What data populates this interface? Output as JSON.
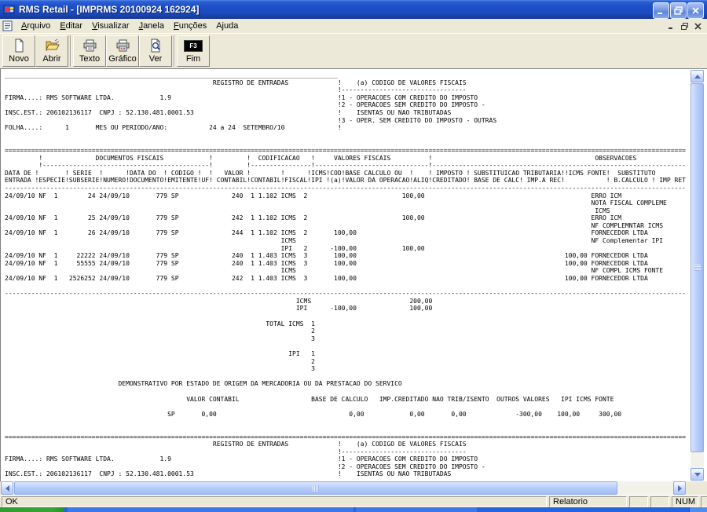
{
  "window": {
    "title": "RMS Retail - [IMPRMS 20100924 162924]"
  },
  "menu": {
    "items": [
      {
        "label": "Arquivo",
        "accel": 0
      },
      {
        "label": "Editar",
        "accel": 0
      },
      {
        "label": "Visualizar",
        "accel": 0
      },
      {
        "label": "Janela",
        "accel": 0
      },
      {
        "label": "Funções",
        "accel": 0
      },
      {
        "label": "Ajuda",
        "accel": 1
      }
    ]
  },
  "toolbar": {
    "buttons": [
      {
        "label": "Novo"
      },
      {
        "label": "Abrir"
      },
      {
        "label": "Texto"
      },
      {
        "label": "Gráfico"
      },
      {
        "label": "Ver"
      },
      {
        "label": "Fim",
        "key": "F3"
      }
    ]
  },
  "statusbar": {
    "message": "OK",
    "mode": "Relatorio",
    "num": "NUM"
  },
  "colors": {
    "titlebar_blue": "#1E50C8",
    "chrome_tan": "#ECE9D8",
    "scrollbar_blue": "#B2C9F8",
    "taskbar_blue": "#2663E0",
    "taskbar_green": "#37A437"
  },
  "report": {
    "lines": [
      [
        [
          0,
          "________________________________________________________________________________________"
        ]
      ],
      [
        [
          55,
          "REGISTRO DE ENTRADAS"
        ],
        [
          88,
          "!"
        ],
        [
          93,
          "(a) CODIGO DE VALORES FISCAIS"
        ]
      ],
      [
        [
          88,
          "!---------------------------------"
        ]
      ],
      [
        [
          0,
          "FIRMA....: RMS SOFTWARE LTDA."
        ],
        [
          41,
          "1.9"
        ],
        [
          88,
          "!1 - OPERACOES COM CREDITO DO IMPOSTO"
        ]
      ],
      [
        [
          88,
          "!2 - OPERACOES SEM CREDITO DO IMPOSTO -"
        ]
      ],
      [
        [
          0,
          "INSC.EST.: 206102136117"
        ],
        [
          25,
          "CNPJ : 52.130.481.0001.53"
        ],
        [
          88,
          "!    ISENTAS OU NAO TRIBUTADAS"
        ]
      ],
      [
        [
          88,
          "!3 - OPER. SEM CREDITO DO IMPOSTO - OUTRAS"
        ]
      ],
      [
        [
          0,
          "FOLHA....:"
        ],
        [
          16,
          "1"
        ],
        [
          24,
          "MES OU PERIODO/ANO:"
        ],
        [
          54,
          "24 a 24  SETEMBRO/10"
        ],
        [
          88,
          "!"
        ]
      ],
      [],
      [],
      [
        [
          0,
          "===================================================================================================================================================================================="
        ]
      ],
      [
        [
          9,
          "!"
        ],
        [
          24,
          "DOCUMENTOS FISCAIS"
        ],
        [
          54,
          "!"
        ],
        [
          64,
          "!"
        ],
        [
          67,
          "CODIFICACAO"
        ],
        [
          81,
          "!"
        ],
        [
          87,
          "VALORES FISCAIS"
        ],
        [
          112,
          "!"
        ],
        [
          156,
          "OBSERVACOES"
        ]
      ],
      [
        [
          9,
          "!"
        ],
        [
          10,
          "--------------------"
        ],
        [
          30,
          "--------------------"
        ],
        [
          50,
          "----"
        ],
        [
          54,
          "!"
        ],
        [
          64,
          "!----------------"
        ],
        [
          81,
          "!"
        ],
        [
          82,
          "--------------------"
        ],
        [
          102,
          "----------"
        ],
        [
          112,
          "!"
        ],
        [
          113,
          "--------------------"
        ],
        [
          133,
          "--------------------"
        ],
        [
          153,
          "--------------------"
        ],
        [
          173,
          "-------"
        ]
      ],
      [
        [
          0,
          "DATA DE"
        ],
        [
          8,
          "!"
        ],
        [
          16,
          "!"
        ],
        [
          18,
          "SERIE"
        ],
        [
          25,
          "!"
        ],
        [
          32,
          "!DATA DO"
        ],
        [
          42,
          "!"
        ],
        [
          44,
          "CODIGO"
        ],
        [
          51,
          "!"
        ],
        [
          54,
          "!"
        ],
        [
          58,
          "VALOR"
        ],
        [
          64,
          "!"
        ],
        [
          73,
          "!"
        ],
        [
          80,
          "!ICMS!COD!BASE CALCULO OU"
        ],
        [
          107,
          "!"
        ],
        [
          112,
          "! IMPOSTO !"
        ],
        [
          124,
          "SUBSTITUICAO TRIBUTARIA!!ICMS FONTE!"
        ],
        [
          162,
          "SUBSTITUTO"
        ]
      ],
      [
        [
          0,
          "ENTRADA"
        ],
        [
          8,
          "!ESPECIE!SUBSERIE!NUMERO!DOCUMENTO!EMITENTE!UF!"
        ],
        [
          56,
          "CONTABIL"
        ],
        [
          64,
          "!CONTABIL!FISCAL!IPI !(a)!VALOR DA OPERACAO!ALIQ!CREDITADO! BASE DE CALC! IMP.A REC!"
        ],
        [
          159,
          "! B.CALCULO ! IMP RET"
        ]
      ],
      [
        [
          0,
          "------------------------------------------------------------------------------------------------------------------------------------------------------------------------------------"
        ]
      ],
      [
        [
          0,
          "24/09/10 NF"
        ],
        [
          13,
          "1"
        ],
        [
          22,
          "24 24/09/10"
        ],
        [
          40,
          "779 SP"
        ],
        [
          60,
          "240"
        ],
        [
          65,
          "1 1.102 ICMS"
        ],
        [
          79,
          "2"
        ],
        [
          105,
          "100,00"
        ],
        [
          155,
          "ERRO ICM"
        ]
      ],
      [
        [
          155,
          "NOTA FISCAL COMPLEME"
        ]
      ],
      [
        [
          156,
          "ICMS"
        ]
      ],
      [
        [
          0,
          "24/09/10 NF"
        ],
        [
          13,
          "1"
        ],
        [
          22,
          "25 24/09/10"
        ],
        [
          40,
          "779 SP"
        ],
        [
          60,
          "242"
        ],
        [
          65,
          "1 1.102 ICMS"
        ],
        [
          79,
          "2"
        ],
        [
          105,
          "100,00"
        ],
        [
          155,
          "ERRO ICM"
        ]
      ],
      [
        [
          155,
          "NF COMPLEMNTAR ICMS"
        ]
      ],
      [
        [
          0,
          "24/09/10 NF"
        ],
        [
          13,
          "1"
        ],
        [
          22,
          "26 24/09/10"
        ],
        [
          40,
          "779 SP"
        ],
        [
          60,
          "244"
        ],
        [
          65,
          "1 1.102 ICMS"
        ],
        [
          79,
          "2"
        ],
        [
          87,
          "100,00"
        ],
        [
          155,
          "FORNECEDOR LTDA"
        ]
      ],
      [
        [
          73,
          "ICMS"
        ],
        [
          155,
          "NF Complementar IPI"
        ]
      ],
      [
        [
          73,
          "IPI"
        ],
        [
          79,
          "2"
        ],
        [
          86,
          "-100,00"
        ],
        [
          105,
          "100,00"
        ]
      ],
      [
        [
          0,
          "24/09/10 NF"
        ],
        [
          13,
          "1"
        ],
        [
          19,
          "22222 24/09/10"
        ],
        [
          40,
          "779 SP"
        ],
        [
          60,
          "240"
        ],
        [
          65,
          "1 1.403 ICMS"
        ],
        [
          79,
          "3"
        ],
        [
          87,
          "100,00"
        ],
        [
          148,
          "100,00 FORNECEDOR LTDA"
        ]
      ],
      [
        [
          0,
          "24/09/10 NF"
        ],
        [
          13,
          "1"
        ],
        [
          19,
          "55555 24/09/10"
        ],
        [
          40,
          "779 SP"
        ],
        [
          60,
          "240"
        ],
        [
          65,
          "1 1.403 ICMS"
        ],
        [
          79,
          "3"
        ],
        [
          87,
          "100,00"
        ],
        [
          148,
          "100,00 FORNECEDOR LTDA"
        ]
      ],
      [
        [
          73,
          "ICMS"
        ],
        [
          155,
          "NF COMPL ICMS FONTE"
        ]
      ],
      [
        [
          0,
          "24/09/10 NF"
        ],
        [
          13,
          "1"
        ],
        [
          17,
          "2526252 24/09/10"
        ],
        [
          40,
          "779 SP"
        ],
        [
          60,
          "242"
        ],
        [
          65,
          "1 1.403 ICMS"
        ],
        [
          79,
          "3"
        ],
        [
          87,
          "100,00"
        ],
        [
          148,
          "100,00 FORNECEDOR LTDA"
        ]
      ],
      [],
      [
        [
          0,
          "------------------------------------------------------------------------------------------------------------------------------------------------------------------------------------"
        ]
      ],
      [
        [
          77,
          "ICMS"
        ],
        [
          107,
          "200,00"
        ]
      ],
      [
        [
          77,
          "IPI"
        ],
        [
          86,
          "-100,00"
        ],
        [
          107,
          "100,00"
        ]
      ],
      [],
      [
        [
          69,
          "TOTAL ICMS"
        ],
        [
          81,
          "1"
        ]
      ],
      [
        [
          81,
          "2"
        ]
      ],
      [
        [
          81,
          "3"
        ]
      ],
      [],
      [
        [
          75,
          "IPI"
        ],
        [
          81,
          "1"
        ]
      ],
      [
        [
          81,
          "2"
        ]
      ],
      [
        [
          81,
          "3"
        ]
      ],
      [],
      [
        [
          30,
          "DEMONSTRATIVO POR ESTADO DE ORIGEM DA MERCADORIA OU DA PRESTACAO DO SERVICO"
        ]
      ],
      [],
      [
        [
          48,
          "VALOR CONTABIL"
        ],
        [
          81,
          "BASE DE CALCULO"
        ],
        [
          99,
          "IMP.CREDITADO NAO TRIB/ISENTO"
        ],
        [
          130,
          "OUTROS VALORES"
        ],
        [
          147,
          "IPI ICMS FONTE"
        ]
      ],
      [],
      [
        [
          43,
          "SP"
        ],
        [
          52,
          "0,00"
        ],
        [
          91,
          "0,00"
        ],
        [
          107,
          "0,00"
        ],
        [
          118,
          "0,00"
        ],
        [
          135,
          "-300,00"
        ],
        [
          146,
          "100,00"
        ],
        [
          157,
          "300,00"
        ]
      ],
      [],
      [],
      [
        [
          0,
          "===================================================================================================================================================================================="
        ]
      ],
      [
        [
          55,
          "REGISTRO DE ENTRADAS"
        ],
        [
          88,
          "!"
        ],
        [
          93,
          "(a) CODIGO DE VALORES FISCAIS"
        ]
      ],
      [
        [
          88,
          "!---------------------------------"
        ]
      ],
      [
        [
          0,
          "FIRMA....: RMS SOFTWARE LTDA."
        ],
        [
          41,
          "1.9"
        ],
        [
          88,
          "!1 - OPERACOES COM CREDITO DO IMPOSTO"
        ]
      ],
      [
        [
          88,
          "!2 - OPERACOES SEM CREDITO DO IMPOSTO -"
        ]
      ],
      [
        [
          0,
          "INSC.EST.: 206102136117"
        ],
        [
          25,
          "CNPJ : 52.130.481.0001.53"
        ],
        [
          88,
          "!    ISENTAS OU NAO TRIBUTADAS"
        ]
      ]
    ]
  }
}
